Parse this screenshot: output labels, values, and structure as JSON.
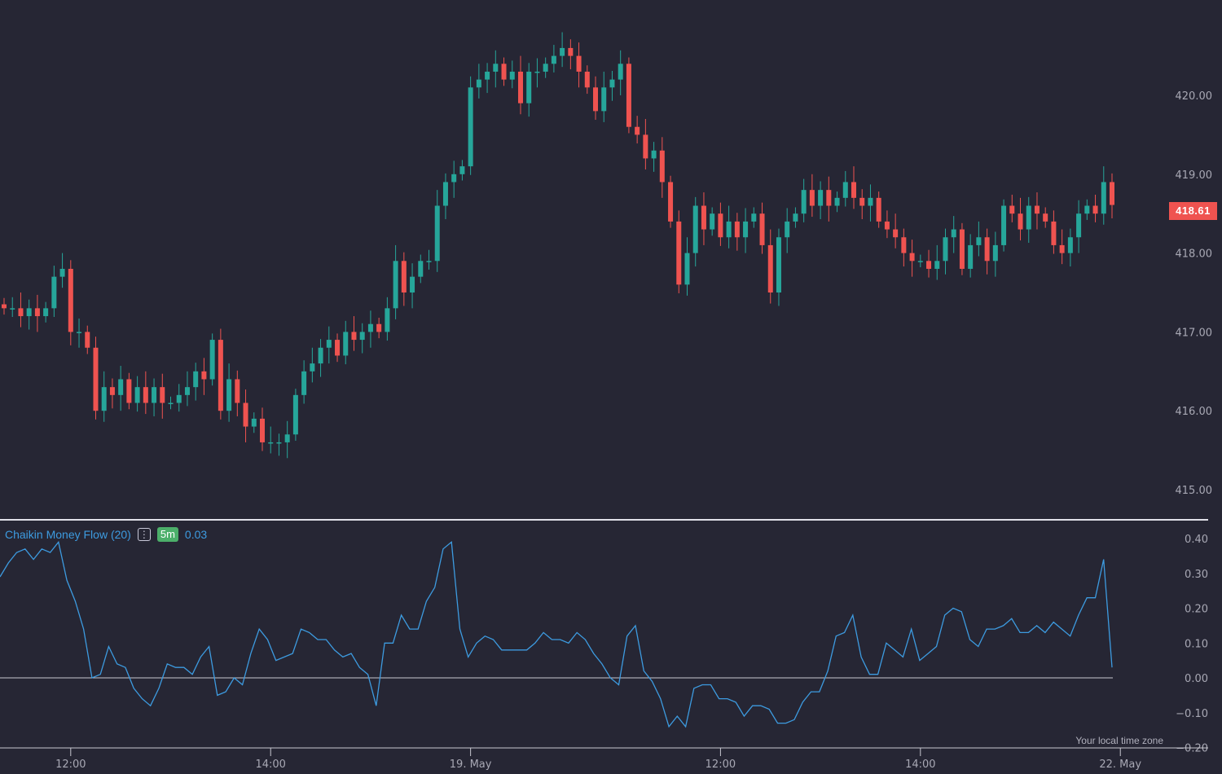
{
  "colors": {
    "up": "#26a69a",
    "down": "#ef5350",
    "cmf_line": "#3d9be0",
    "background": "#262634",
    "grid_line": "#c8c8d0"
  },
  "chart_data": [
    {
      "type": "candlestick",
      "title": "",
      "yticks": [
        "420.00",
        "419.00",
        "418.00",
        "417.00",
        "416.00",
        "415.00"
      ],
      "ytick_values": [
        420,
        419,
        418,
        417,
        416,
        415
      ],
      "ylim": [
        414.84,
        421.21
      ],
      "last_price": "418.61",
      "first_open": 417.35,
      "closes": [
        417.3,
        417.3,
        417.2,
        417.3,
        417.2,
        417.3,
        417.7,
        417.8,
        417.0,
        417.0,
        416.8,
        416.0,
        416.3,
        416.2,
        416.4,
        416.1,
        416.3,
        416.1,
        416.3,
        416.1,
        416.1,
        416.2,
        416.3,
        416.5,
        416.4,
        416.9,
        416.0,
        416.4,
        416.1,
        415.8,
        415.9,
        415.6,
        415.6,
        415.6,
        415.7,
        416.2,
        416.5,
        416.6,
        416.8,
        416.9,
        416.7,
        417.0,
        416.9,
        417.0,
        417.1,
        417.0,
        417.3,
        417.9,
        417.5,
        417.7,
        417.9,
        417.9,
        418.6,
        418.9,
        419.0,
        419.1,
        420.1,
        420.2,
        420.3,
        420.4,
        420.2,
        420.3,
        419.9,
        420.3,
        420.3,
        420.4,
        420.5,
        420.6,
        420.5,
        420.3,
        420.1,
        419.8,
        420.1,
        420.2,
        420.4,
        419.6,
        419.5,
        419.2,
        419.3,
        418.9,
        418.4,
        417.6,
        418.0,
        418.6,
        418.3,
        418.5,
        418.2,
        418.4,
        418.2,
        418.4,
        418.5,
        418.1,
        417.5,
        418.2,
        418.4,
        418.5,
        418.8,
        418.6,
        418.8,
        418.6,
        418.7,
        418.9,
        418.7,
        418.6,
        418.7,
        418.4,
        418.3,
        418.2,
        418.0,
        417.9,
        417.9,
        417.8,
        417.9,
        418.2,
        418.3,
        417.8,
        418.1,
        418.2,
        417.9,
        418.1,
        418.6,
        418.5,
        418.3,
        418.6,
        418.5,
        418.4,
        418.1,
        418.0,
        418.2,
        418.5,
        418.6,
        418.5,
        418.9,
        418.61
      ]
    },
    {
      "type": "line",
      "title": "Chaikin Money Flow (20)",
      "interval": "5m",
      "current_value": "0.03",
      "yticks": [
        "0.40",
        "0.30",
        "0.20",
        "0.10",
        "0.00",
        "−0.10",
        "−0.20"
      ],
      "ytick_values": [
        0.4,
        0.3,
        0.2,
        0.1,
        0,
        -0.1,
        -0.2
      ],
      "ylim": [
        -0.2,
        0.4
      ],
      "values": [
        0.29,
        0.33,
        0.36,
        0.37,
        0.34,
        0.37,
        0.36,
        0.39,
        0.28,
        0.22,
        0.14,
        0.0,
        0.01,
        0.09,
        0.04,
        0.03,
        -0.03,
        -0.06,
        -0.08,
        -0.03,
        0.04,
        0.03,
        0.03,
        0.01,
        0.06,
        0.09,
        -0.05,
        -0.04,
        0.0,
        -0.02,
        0.07,
        0.14,
        0.11,
        0.05,
        0.06,
        0.07,
        0.14,
        0.13,
        0.11,
        0.11,
        0.08,
        0.06,
        0.07,
        0.03,
        0.01,
        -0.08,
        0.1,
        0.1,
        0.18,
        0.14,
        0.14,
        0.22,
        0.26,
        0.37,
        0.39,
        0.14,
        0.06,
        0.1,
        0.12,
        0.11,
        0.08,
        0.08,
        0.08,
        0.08,
        0.1,
        0.13,
        0.11,
        0.11,
        0.1,
        0.13,
        0.11,
        0.07,
        0.04,
        0.0,
        -0.02,
        0.12,
        0.15,
        0.02,
        -0.01,
        -0.06,
        -0.14,
        -0.11,
        -0.14,
        -0.03,
        -0.02,
        -0.02,
        -0.06,
        -0.06,
        -0.07,
        -0.11,
        -0.08,
        -0.08,
        -0.09,
        -0.13,
        -0.13,
        -0.12,
        -0.07,
        -0.04,
        -0.04,
        0.02,
        0.12,
        0.13,
        0.18,
        0.06,
        0.01,
        0.01,
        0.1,
        0.08,
        0.06,
        0.14,
        0.05,
        0.07,
        0.09,
        0.18,
        0.2,
        0.19,
        0.11,
        0.09,
        0.14,
        0.14,
        0.15,
        0.17,
        0.13,
        0.13,
        0.15,
        0.13,
        0.16,
        0.14,
        0.12,
        0.18,
        0.23,
        0.23,
        0.34,
        0.03
      ]
    }
  ],
  "xaxis": {
    "ticks": [
      "12:00",
      "14:00",
      "19. May",
      "12:00",
      "14:00",
      "22. May"
    ],
    "tick_index": [
      9,
      33,
      57,
      87,
      111,
      135
    ]
  },
  "legend": {
    "menu_icon": "⋮"
  },
  "timezone_label": "Your local time zone"
}
